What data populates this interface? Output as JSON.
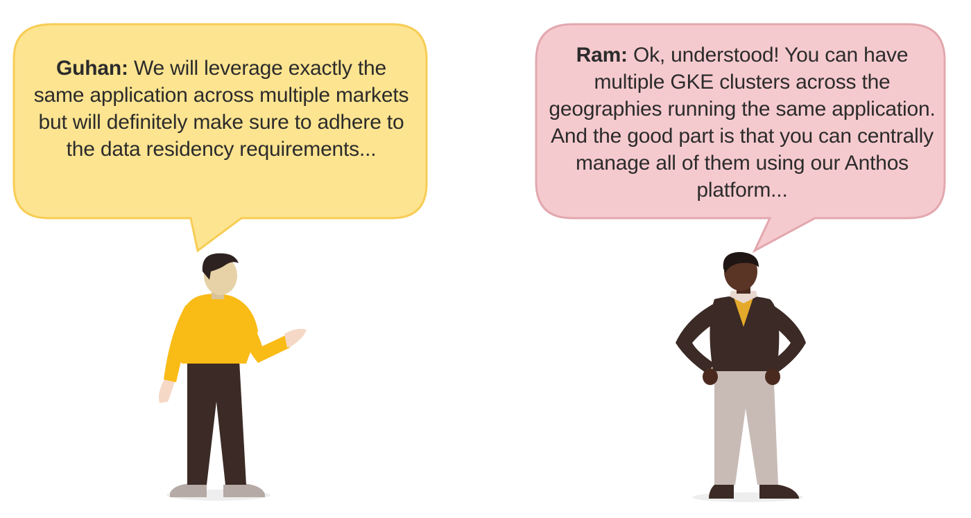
{
  "colors": {
    "left_bubble_fill": "#fde491",
    "left_bubble_stroke": "#f7cd55",
    "right_bubble_fill": "#f5cace",
    "right_bubble_stroke": "#e2a8ae",
    "yellow_sweater": "#f9bb16",
    "brown": "#3b2a25",
    "khaki": "#c8bbb6"
  },
  "left_bubble": {
    "speaker": "Guhan:",
    "text": " We will leverage exactly the same application across multiple markets but will definitely make sure to adhere to the data residency requirements..."
  },
  "right_bubble": {
    "speaker": "Ram:",
    "text": " Ok, understood! You can have multiple GKE clusters across the geographies running the same application. And the good part is that you can centrally manage all of them using our Anthos platform..."
  }
}
